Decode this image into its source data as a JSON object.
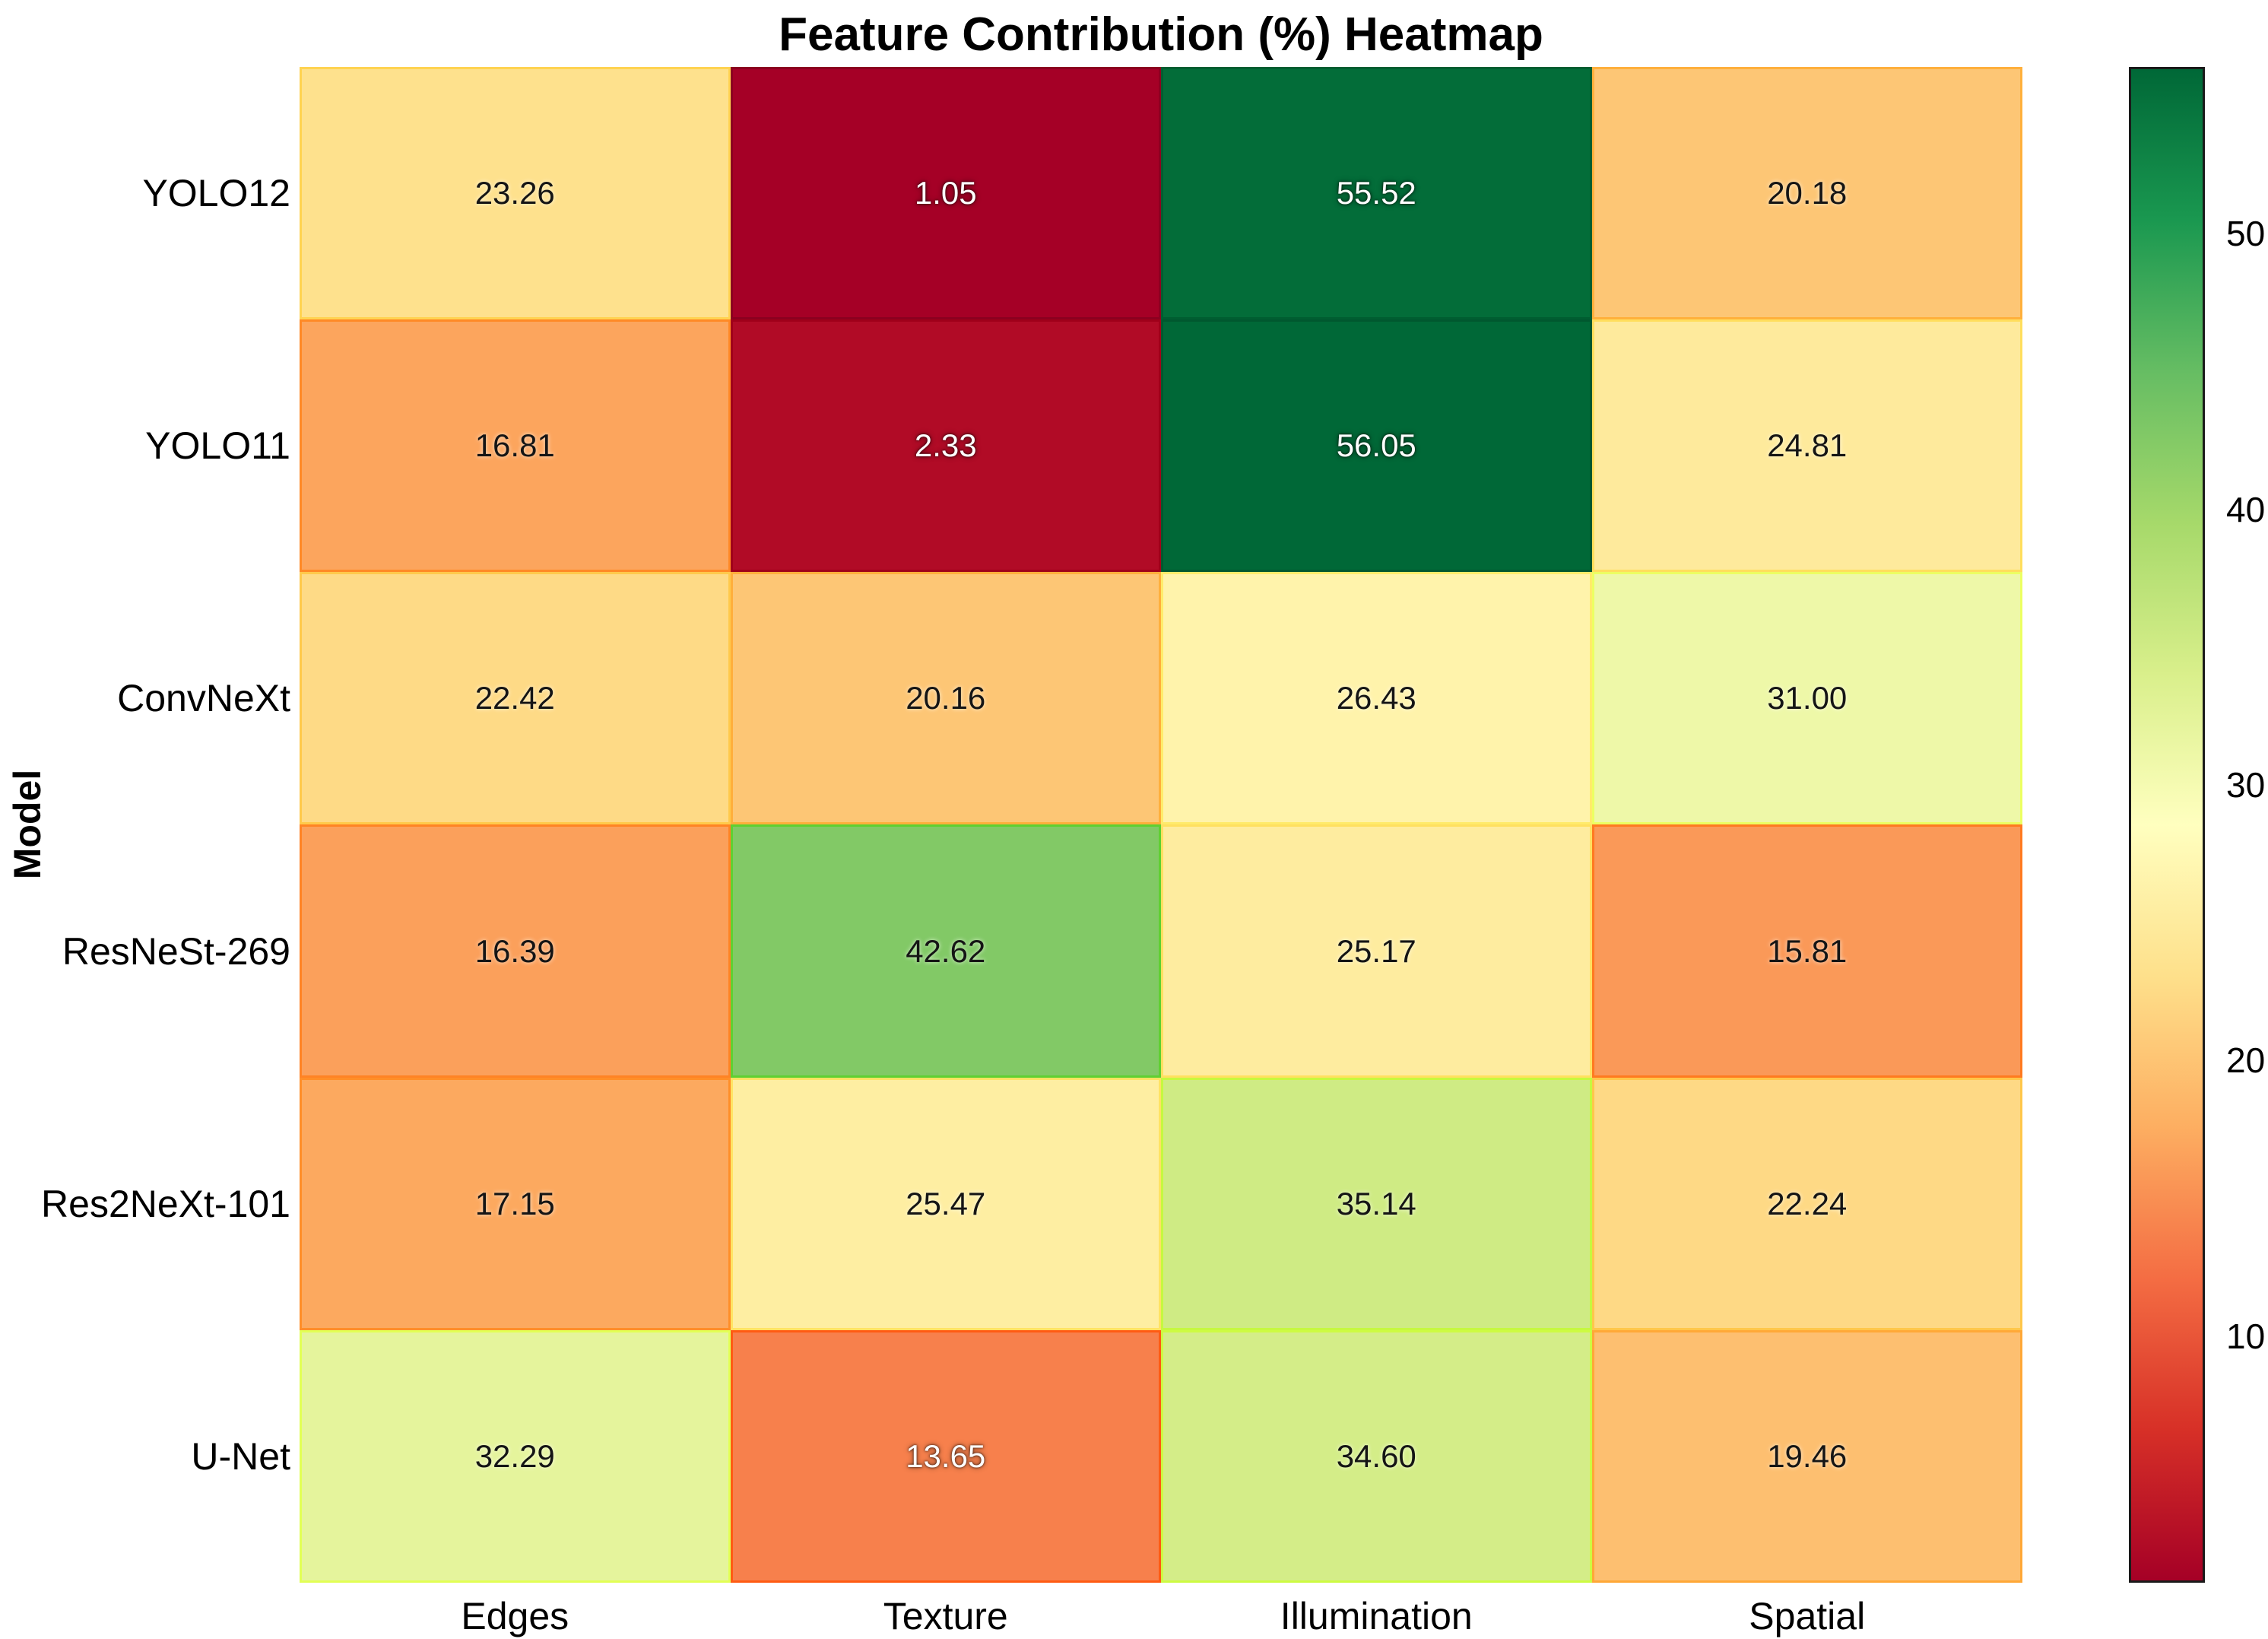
{
  "title": "Feature Contribution (%) Heatmap",
  "y_axis_label": "Model",
  "chart_data": {
    "type": "heatmap",
    "rows": [
      "YOLO12",
      "YOLO11",
      "ConvNeXt",
      "ResNeSt-269",
      "Res2NeXt-101",
      "U-Net"
    ],
    "columns": [
      "Edges",
      "Texture",
      "Illumination",
      "Spatial"
    ],
    "values": [
      [
        23.26,
        1.05,
        55.52,
        20.18
      ],
      [
        16.81,
        2.33,
        56.05,
        24.81
      ],
      [
        22.42,
        20.16,
        26.43,
        31.0
      ],
      [
        16.39,
        42.62,
        25.17,
        15.81
      ],
      [
        17.15,
        25.47,
        35.14,
        22.24
      ],
      [
        32.29,
        13.65,
        34.6,
        19.46
      ]
    ],
    "value_decimals": 2,
    "vmin": 1.05,
    "vmax": 56.05,
    "colormap_name": "RdYlGn",
    "colormap_colors": [
      "#a50026",
      "#d73027",
      "#f46d43",
      "#fdae61",
      "#fee08b",
      "#ffffbf",
      "#d9ef8b",
      "#a6d96a",
      "#66bd63",
      "#1a9850",
      "#006837"
    ],
    "colorbar_ticks": [
      10,
      20,
      30,
      40,
      50
    ],
    "annotation_color_dark": "#151515",
    "annotation_color_light": "#ffffff",
    "grid_on": false,
    "legend_position": "colorbar-right"
  }
}
